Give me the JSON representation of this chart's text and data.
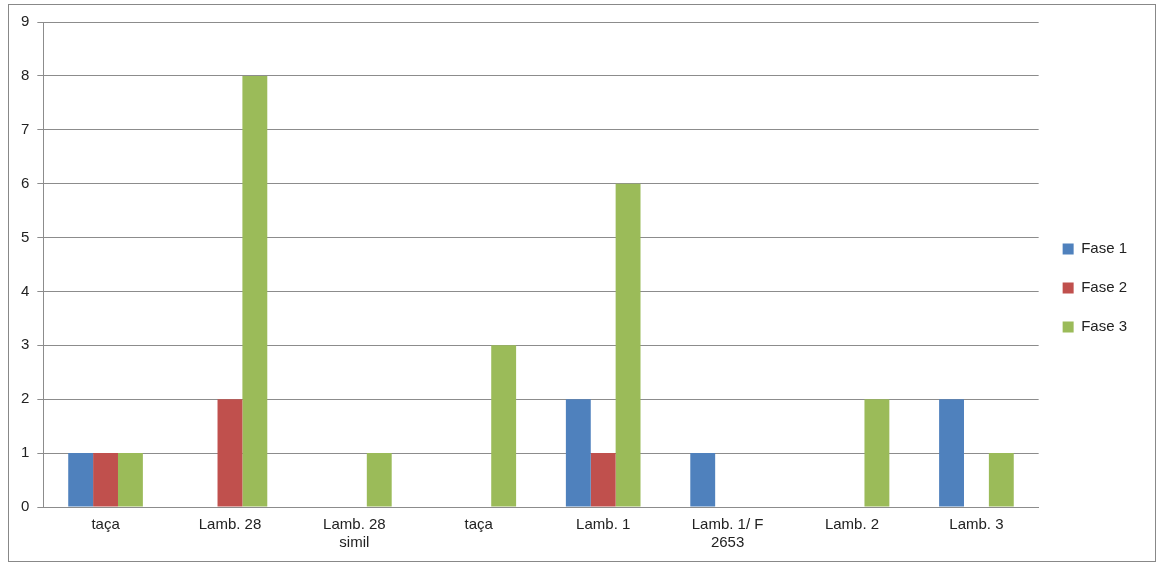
{
  "chart_data": {
    "type": "bar",
    "categories": [
      "taça",
      "Lamb. 28",
      "Lamb. 28 simil",
      "taça",
      "Lamb. 1",
      "Lamb. 1/ F 2653",
      "Lamb. 2",
      "Lamb. 3"
    ],
    "series": [
      {
        "name": "Fase 1",
        "color": "#4f81bd",
        "values": [
          1,
          0,
          0,
          0,
          2,
          1,
          0,
          2
        ]
      },
      {
        "name": "Fase 2",
        "color": "#c0504d",
        "values": [
          1,
          2,
          0,
          0,
          1,
          0,
          0,
          0
        ]
      },
      {
        "name": "Fase 3",
        "color": "#9bbb59",
        "values": [
          1,
          8,
          1,
          3,
          6,
          0,
          2,
          1
        ]
      }
    ],
    "ylim": [
      0,
      9
    ],
    "yticks": [
      0,
      1,
      2,
      3,
      4,
      5,
      6,
      7,
      8,
      9
    ],
    "grid": "y",
    "legend": "right"
  }
}
